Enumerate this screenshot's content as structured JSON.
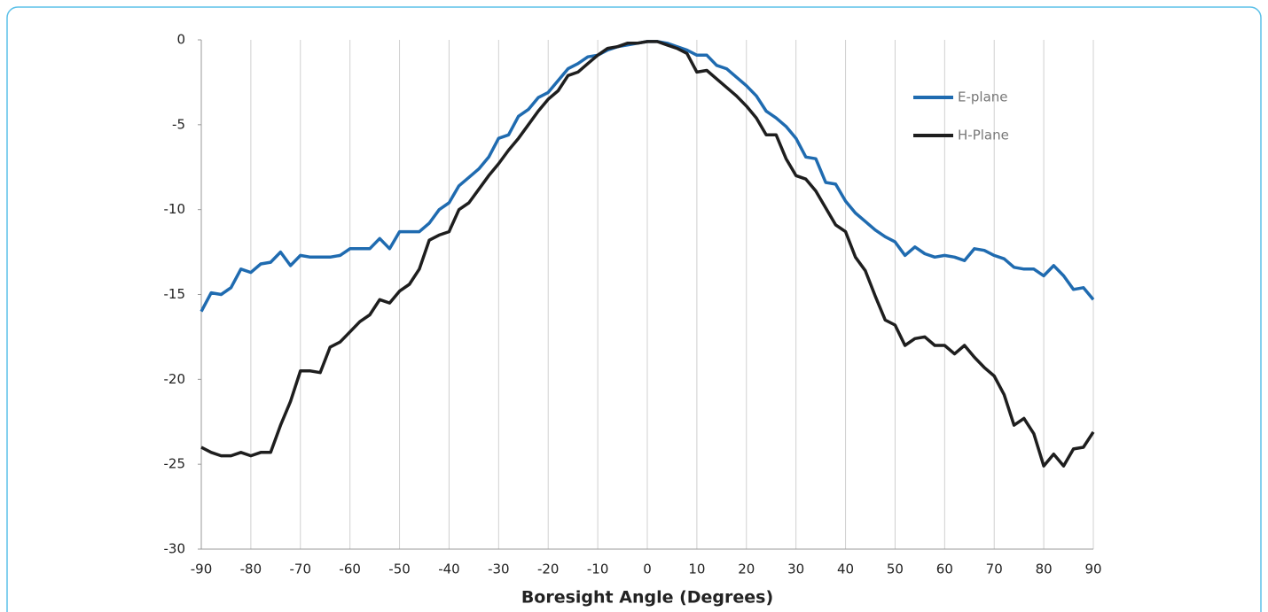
{
  "chart_data": {
    "type": "line",
    "x_label": "Boresight Angle (Degrees)",
    "x": [
      -90,
      -88,
      -86,
      -84,
      -82,
      -80,
      -78,
      -76,
      -74,
      -72,
      -70,
      -68,
      -66,
      -64,
      -62,
      -60,
      -58,
      -56,
      -54,
      -52,
      -50,
      -48,
      -46,
      -44,
      -42,
      -40,
      -38,
      -36,
      -34,
      -32,
      -30,
      -28,
      -26,
      -24,
      -22,
      -20,
      -18,
      -16,
      -14,
      -12,
      -10,
      -8,
      -6,
      -4,
      -2,
      0,
      2,
      4,
      6,
      8,
      10,
      12,
      14,
      16,
      18,
      20,
      22,
      24,
      26,
      28,
      30,
      32,
      34,
      36,
      38,
      40,
      42,
      44,
      46,
      48,
      50,
      52,
      54,
      56,
      58,
      60,
      62,
      64,
      66,
      68,
      70,
      72,
      74,
      76,
      78,
      80,
      82,
      84,
      86,
      88,
      90
    ],
    "series": [
      {
        "name": "E-plane",
        "color": "#1f6bb0",
        "values": [
          -16,
          -14.9,
          -15,
          -14.6,
          -13.5,
          -13.7,
          -13.2,
          -13.1,
          -12.5,
          -13.3,
          -12.7,
          -12.8,
          -12.8,
          -12.8,
          -12.7,
          -12.3,
          -12.3,
          -12.3,
          -11.7,
          -12.3,
          -11.3,
          -11.3,
          -11.3,
          -10.8,
          -10,
          -9.6,
          -8.6,
          -8.1,
          -7.6,
          -6.9,
          -5.8,
          -5.6,
          -4.5,
          -4.1,
          -3.4,
          -3.1,
          -2.4,
          -1.7,
          -1.4,
          -1.0,
          -0.9,
          -0.6,
          -0.4,
          -0.3,
          -0.2,
          -0.1,
          -0.1,
          -0.2,
          -0.4,
          -0.6,
          -0.9,
          -0.9,
          -1.5,
          -1.7,
          -2.2,
          -2.7,
          -3.3,
          -4.2,
          -4.6,
          -5.1,
          -5.8,
          -6.9,
          -7.0,
          -8.4,
          -8.5,
          -9.5,
          -10.2,
          -10.7,
          -11.2,
          -11.6,
          -11.9,
          -12.7,
          -12.2,
          -12.6,
          -12.8,
          -12.7,
          -12.8,
          -13.0,
          -12.3,
          -12.4,
          -12.7,
          -12.9,
          -13.4,
          -13.5,
          -13.5,
          -13.9,
          -13.3,
          -13.9,
          -14.7,
          -14.6,
          -15.3
        ]
      },
      {
        "name": "H-Plane",
        "color": "#1e1e1e",
        "values": [
          -24,
          -24.3,
          -24.5,
          -24.5,
          -24.3,
          -24.5,
          -24.3,
          -24.3,
          -22.7,
          -21.3,
          -19.5,
          -19.5,
          -19.6,
          -18.1,
          -17.8,
          -17.2,
          -16.6,
          -16.2,
          -15.3,
          -15.5,
          -14.8,
          -14.4,
          -13.5,
          -11.8,
          -11.5,
          -11.3,
          -10,
          -9.6,
          -8.8,
          -8,
          -7.3,
          -6.5,
          -5.8,
          -5,
          -4.2,
          -3.5,
          -3,
          -2.1,
          -1.9,
          -1.4,
          -0.9,
          -0.5,
          -0.4,
          -0.2,
          -0.2,
          -0.1,
          -0.1,
          -0.3,
          -0.5,
          -0.8,
          -1.9,
          -1.8,
          -2.3,
          -2.8,
          -3.3,
          -3.9,
          -4.6,
          -5.6,
          -5.6,
          -7,
          -8,
          -8.2,
          -8.9,
          -9.9,
          -10.9,
          -11.3,
          -12.8,
          -13.6,
          -15.1,
          -16.5,
          -16.8,
          -18,
          -17.6,
          -17.5,
          -18,
          -18,
          -18.5,
          -18,
          -18.7,
          -19.3,
          -19.8,
          -20.9,
          -22.7,
          -22.3,
          -23.2,
          -25.1,
          -24.4,
          -25.1,
          -24.1,
          -24,
          -23.1
        ]
      }
    ],
    "xlim": [
      -90,
      90
    ],
    "xticks": [
      -90,
      -80,
      -70,
      -60,
      -50,
      -40,
      -30,
      -20,
      -10,
      0,
      10,
      20,
      30,
      40,
      50,
      60,
      70,
      80,
      90
    ],
    "ylim": [
      -30,
      0
    ],
    "yticks": [
      -30,
      -25,
      -20,
      -15,
      -10,
      -5,
      0
    ],
    "grid": true,
    "legend": "upper right"
  }
}
